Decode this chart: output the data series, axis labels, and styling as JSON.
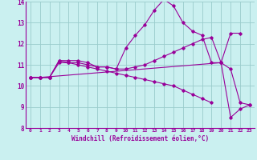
{
  "xlabel": "Windchill (Refroidissement éolien,°C)",
  "background_color": "#caf0f0",
  "line_color": "#990099",
  "grid_color": "#99cccc",
  "xlim": [
    -0.5,
    23.5
  ],
  "ylim": [
    8,
    14
  ],
  "yticks": [
    8,
    9,
    10,
    11,
    12,
    13,
    14
  ],
  "xticks": [
    0,
    1,
    2,
    3,
    4,
    5,
    6,
    7,
    8,
    9,
    10,
    11,
    12,
    13,
    14,
    15,
    16,
    17,
    18,
    19,
    20,
    21,
    22,
    23
  ],
  "series": [
    {
      "x": [
        0,
        1,
        2,
        3,
        4,
        5,
        6,
        7,
        8,
        9,
        10,
        11,
        12,
        13,
        14,
        15,
        16,
        17,
        18,
        19,
        20,
        21,
        22
      ],
      "y": [
        10.4,
        10.4,
        10.4,
        11.2,
        11.2,
        11.2,
        11.1,
        10.9,
        10.9,
        10.8,
        11.8,
        12.4,
        12.9,
        13.6,
        14.1,
        13.8,
        13.0,
        12.6,
        12.4,
        11.1,
        11.1,
        12.5,
        12.5
      ]
    },
    {
      "x": [
        0,
        1,
        2,
        3,
        4,
        5,
        6,
        7,
        8,
        9,
        10,
        11,
        12,
        13,
        14,
        15,
        16,
        17,
        18,
        19,
        20,
        21,
        22,
        23
      ],
      "y": [
        10.4,
        10.4,
        10.4,
        11.1,
        11.1,
        11.1,
        11.0,
        10.9,
        10.9,
        10.8,
        10.8,
        10.9,
        11.0,
        11.2,
        11.4,
        11.6,
        11.8,
        12.0,
        12.2,
        12.3,
        11.1,
        10.8,
        9.2,
        9.1
      ]
    },
    {
      "x": [
        0,
        1,
        2,
        3,
        4,
        5,
        6,
        7,
        8,
        9,
        10,
        11,
        12,
        13,
        14,
        15,
        16,
        17,
        18,
        19
      ],
      "y": [
        10.4,
        10.4,
        10.4,
        11.2,
        11.1,
        11.0,
        10.9,
        10.8,
        10.7,
        10.6,
        10.5,
        10.4,
        10.3,
        10.2,
        10.1,
        10.0,
        9.8,
        9.6,
        9.4,
        9.2
      ]
    },
    {
      "x": [
        0,
        1,
        20,
        21,
        22,
        23
      ],
      "y": [
        10.4,
        10.4,
        11.1,
        8.5,
        8.9,
        9.1
      ]
    }
  ]
}
